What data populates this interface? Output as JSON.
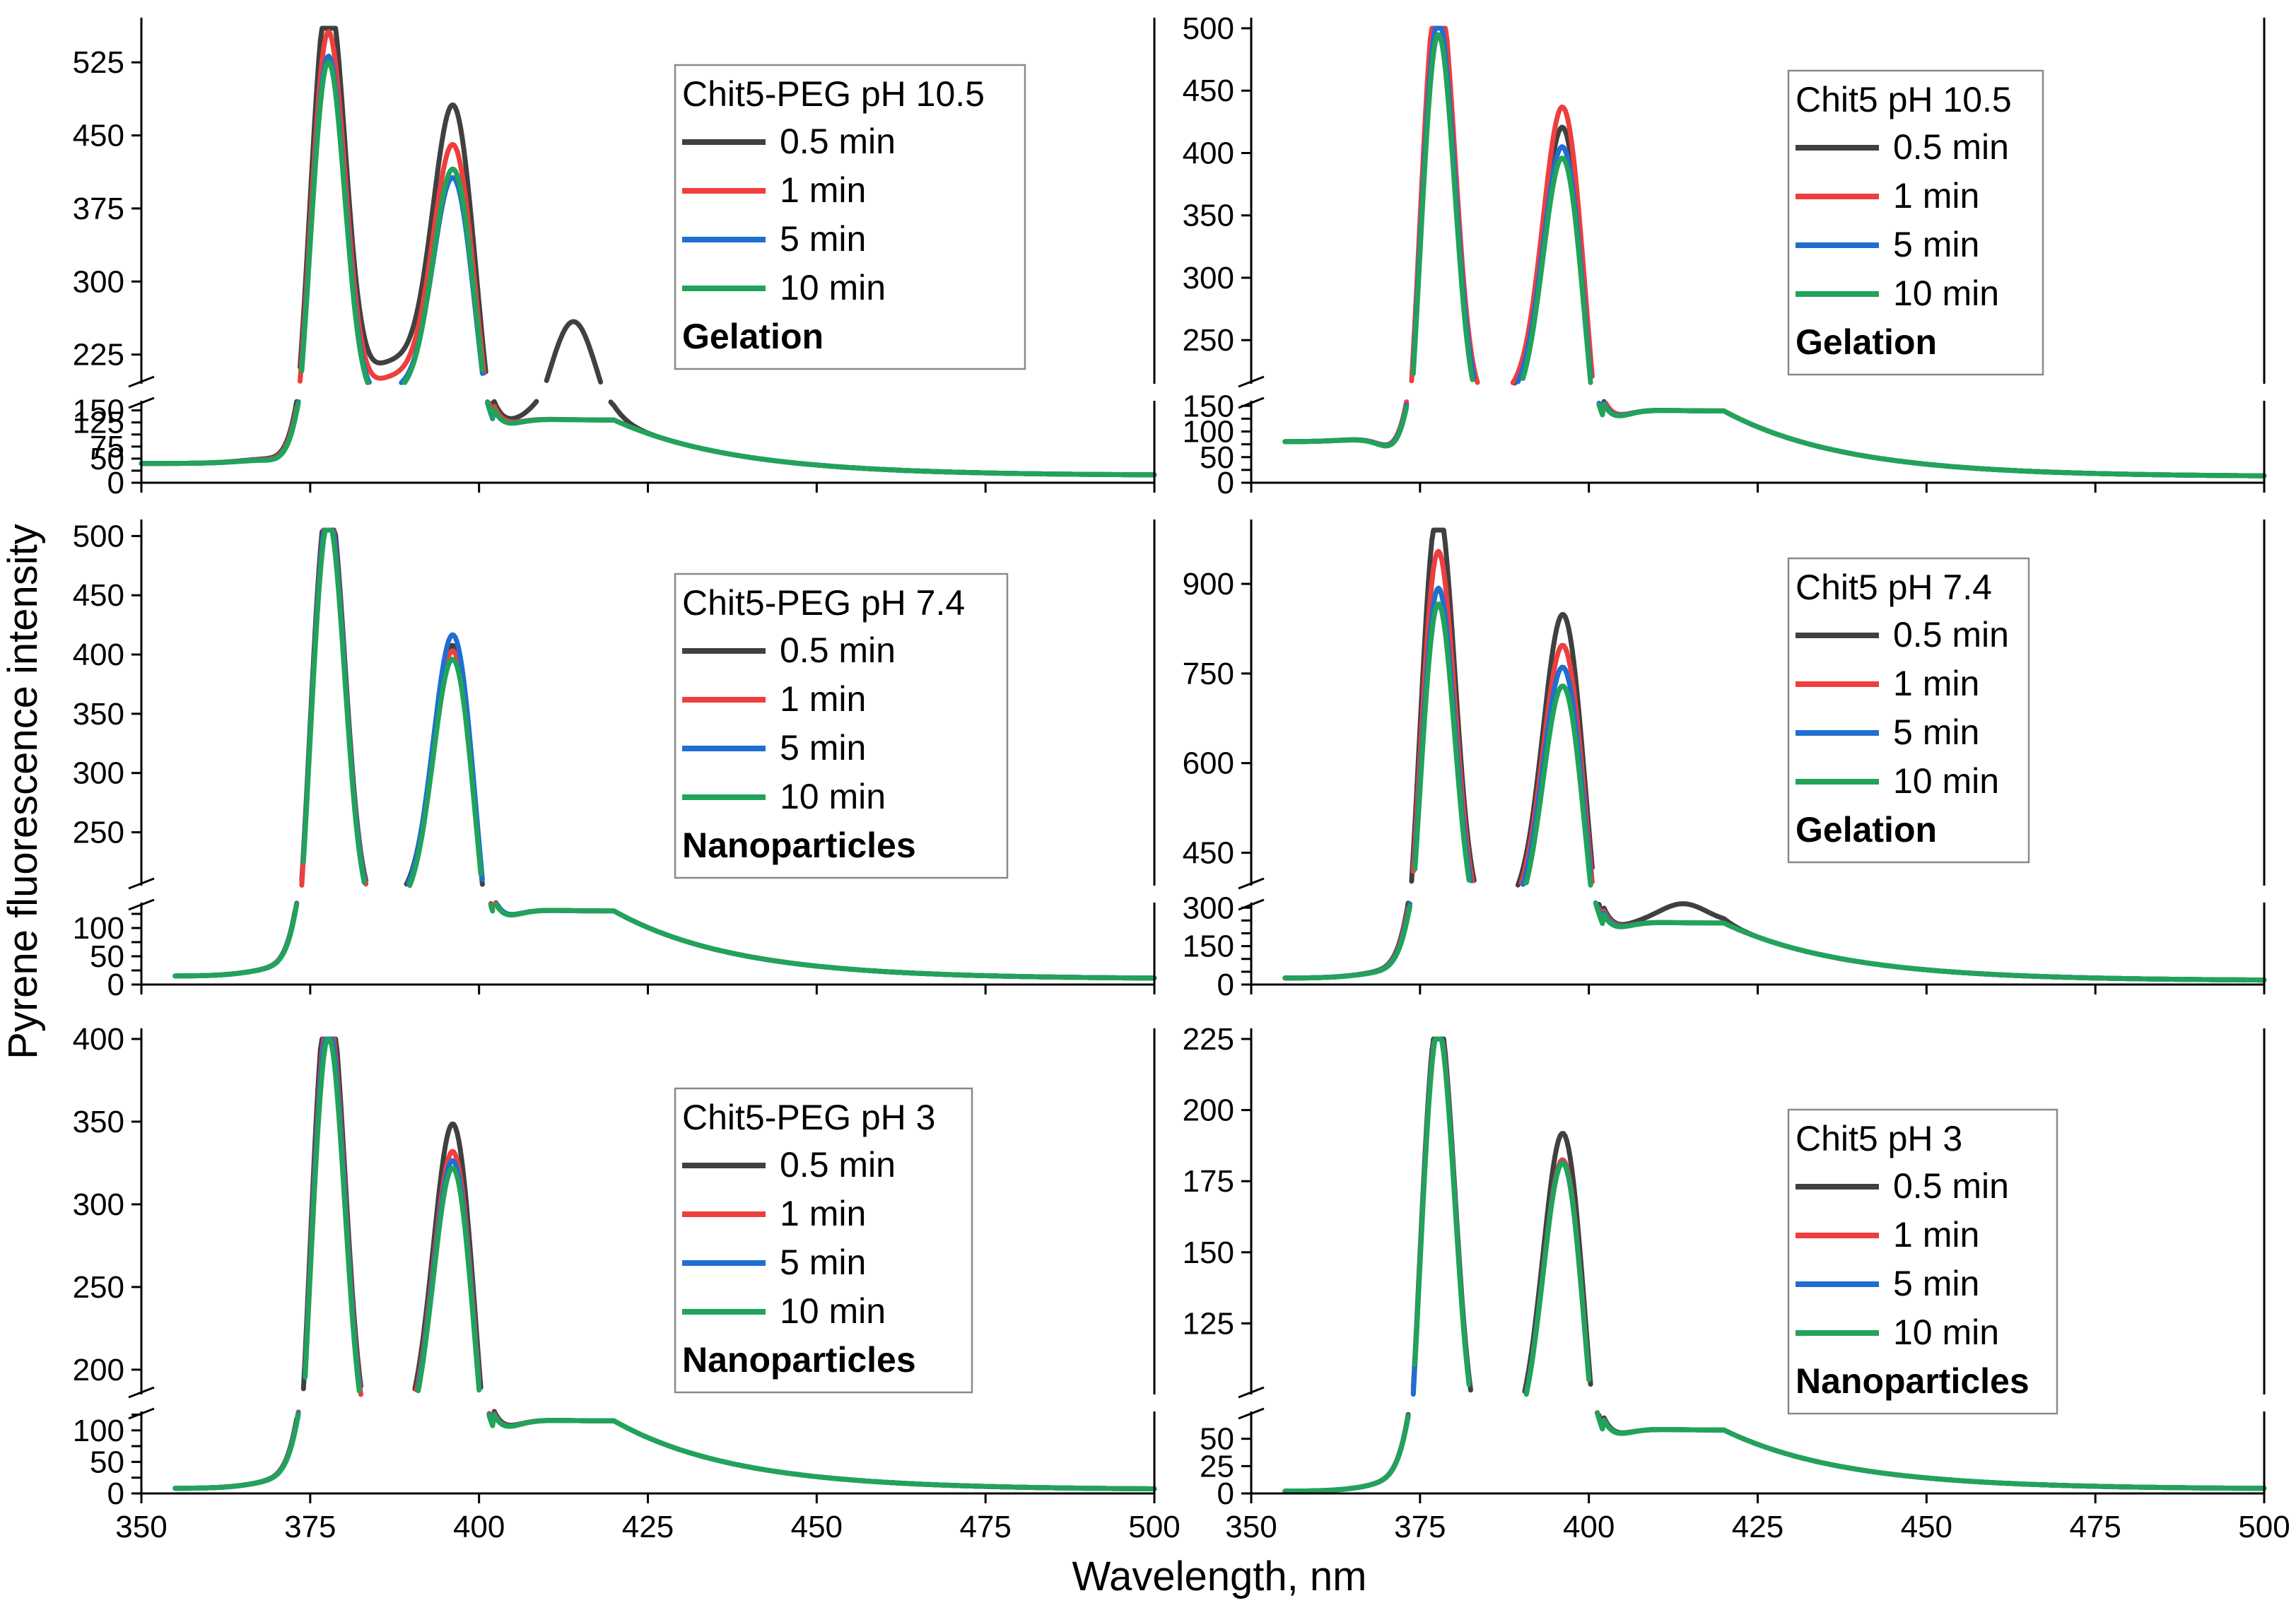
{
  "figure": {
    "ylabel": "Pyrene fluorescence intensity",
    "xlabel": "Wavelength, nm"
  },
  "colors": {
    "0.5 min": "#404040",
    "1 min": "#ef3e3e",
    "5 min": "#1f6fd1",
    "10 min": "#21a35a"
  },
  "chart_data": [
    {
      "id": "chit5-peg-105",
      "type": "line",
      "legend_title": "Chit5-PEG pH 10.5",
      "state": "Gelation",
      "xlim": [
        350,
        500
      ],
      "ylim_upper": [
        195,
        560
      ],
      "yticks_upper": [
        225,
        300,
        375,
        450,
        525
      ],
      "ylim_lower": [
        0,
        170
      ],
      "yticks_lower": [
        0,
        25,
        50,
        75,
        100,
        125,
        150
      ],
      "yticklabels_lower": [
        "0",
        "",
        "50",
        "75",
        "",
        "125",
        "150"
      ],
      "peaks": [
        {
          "name": "0.5 min",
          "p1": 550,
          "v1": 275,
          "p2": 430,
          "s3": 245
        },
        {
          "name": "1 min",
          "p1": 512,
          "v1": 255,
          "p2": 393,
          "s3": 0
        },
        {
          "name": "5 min",
          "p1": 490,
          "v1": 238,
          "p2": 362,
          "s3": 0
        },
        {
          "name": "10 min",
          "p1": 485,
          "v1": 232,
          "p2": 372,
          "s3": 0
        }
      ],
      "baseline": {
        "start": 40,
        "tail": 15,
        "shoulder": 130
      }
    },
    {
      "id": "chit5-105",
      "type": "line",
      "legend_title": "Chit5 pH 10.5",
      "state": "Gelation",
      "xlim": [
        350,
        500
      ],
      "ylim_upper": [
        215,
        500
      ],
      "yticks_upper": [
        250,
        300,
        350,
        400,
        450,
        500
      ],
      "ylim_lower": [
        0,
        160
      ],
      "yticks_lower": [
        0,
        25,
        50,
        75,
        100,
        125,
        150
      ],
      "yticklabels_lower": [
        "0",
        "",
        "50",
        "",
        "100",
        "",
        "150"
      ],
      "peaks": [
        {
          "name": "0.5 min",
          "p1": 475,
          "v1": 258,
          "p2": 372,
          "s3": 0
        },
        {
          "name": "1 min",
          "p1": 490,
          "v1": 260,
          "p2": 388,
          "s3": 0
        },
        {
          "name": "5 min",
          "p1": 462,
          "v1": 254,
          "p2": 357,
          "s3": 0
        },
        {
          "name": "10 min",
          "p1": 452,
          "v1": 243,
          "p2": 350,
          "s3": 0
        }
      ],
      "baseline": {
        "start": 80,
        "tail": 12,
        "shoulder": 140
      }
    },
    {
      "id": "chit5-peg-74",
      "type": "line",
      "legend_title": "Chit5-PEG pH 7.4",
      "state": "Nanoparticles",
      "xlim": [
        350,
        500
      ],
      "ylim_upper": [
        205,
        505
      ],
      "yticks_upper": [
        250,
        300,
        350,
        400,
        450,
        500
      ],
      "ylim_lower": [
        0,
        145
      ],
      "yticks_lower": [
        0,
        25,
        50,
        75,
        100,
        125
      ],
      "yticklabels_lower": [
        "0",
        "",
        "50",
        "",
        "100",
        ""
      ],
      "peaks": [
        {
          "name": "0.5 min",
          "p1": 490,
          "v1": 243,
          "p2": 362,
          "s3": 0
        },
        {
          "name": "1 min",
          "p1": 480,
          "v1": 240,
          "p2": 358,
          "s3": 0
        },
        {
          "name": "5 min",
          "p1": 478,
          "v1": 238,
          "p2": 372,
          "s3": 0
        },
        {
          "name": "10 min",
          "p1": 472,
          "v1": 234,
          "p2": 352,
          "s3": 0
        }
      ],
      "baseline": {
        "start": 15,
        "tail": 10,
        "shoulder": 130
      }
    },
    {
      "id": "chit5-74",
      "type": "line",
      "legend_title": "Chit5 pH 7.4",
      "state": "Gelation",
      "xlim": [
        350,
        500
      ],
      "ylim_upper": [
        395,
        990
      ],
      "yticks_upper": [
        450,
        600,
        750,
        900
      ],
      "ylim_lower": [
        0,
        320
      ],
      "yticks_lower": [
        0,
        50,
        100,
        150,
        200,
        250,
        300
      ],
      "yticklabels_lower": [
        "0",
        "",
        "",
        "150",
        "",
        "",
        "300"
      ],
      "peaks": [
        {
          "name": "0.5 min",
          "p1": 950,
          "v1": 450,
          "p2": 765,
          "s3": 290
        },
        {
          "name": "1 min",
          "p1": 878,
          "v1": 440,
          "p2": 715,
          "s3": 0
        },
        {
          "name": "5 min",
          "p1": 818,
          "v1": 430,
          "p2": 680,
          "s3": 0
        },
        {
          "name": "10 min",
          "p1": 795,
          "v1": 410,
          "p2": 652,
          "s3": 0
        }
      ],
      "baseline": {
        "start": 25,
        "tail": 15,
        "shoulder": 240
      }
    },
    {
      "id": "chit5-peg-3",
      "type": "line",
      "legend_title": "Chit5-PEG pH 3",
      "state": "Nanoparticles",
      "xlim": [
        350,
        500
      ],
      "ylim_upper": [
        185,
        400
      ],
      "yticks_upper": [
        200,
        250,
        300,
        350,
        400
      ],
      "ylim_lower": [
        0,
        130
      ],
      "yticks_lower": [
        0,
        25,
        50,
        75,
        100,
        125
      ],
      "yticklabels_lower": [
        "0",
        "",
        "50",
        "",
        "100",
        ""
      ],
      "peaks": [
        {
          "name": "0.5 min",
          "p1": 395,
          "v1": 200,
          "p2": 311,
          "s3": 0
        },
        {
          "name": "1 min",
          "p1": 380,
          "v1": 196,
          "p2": 295,
          "s3": 0
        },
        {
          "name": "5 min",
          "p1": 375,
          "v1": 193,
          "p2": 290,
          "s3": 0
        },
        {
          "name": "10 min",
          "p1": 368,
          "v1": 190,
          "p2": 286,
          "s3": 0
        }
      ],
      "baseline": {
        "start": 8,
        "tail": 6,
        "shoulder": 115
      }
    },
    {
      "id": "chit5-3",
      "type": "line",
      "legend_title": "Chit5 pH 3",
      "state": "Nanoparticles",
      "xlim": [
        350,
        500
      ],
      "ylim_upper": [
        100,
        225
      ],
      "yticks_upper": [
        125,
        150,
        175,
        200,
        225
      ],
      "ylim_lower": [
        0,
        75
      ],
      "yticks_lower": [
        0,
        25,
        50
      ],
      "yticklabels_lower": [
        "0",
        "25",
        "50"
      ],
      "peaks": [
        {
          "name": "0.5 min",
          "p1": 215,
          "v1": 106,
          "p2": 172,
          "s3": 0
        },
        {
          "name": "1 min",
          "p1": 212,
          "v1": 104,
          "p2": 163,
          "s3": 0
        },
        {
          "name": "5 min",
          "p1": 211,
          "v1": 104,
          "p2": 162,
          "s3": 0
        },
        {
          "name": "10 min",
          "p1": 210,
          "v1": 103,
          "p2": 162,
          "s3": 0
        }
      ],
      "baseline": {
        "start": 2,
        "tail": 4,
        "shoulder": 58
      }
    }
  ],
  "xticks": [
    350,
    375,
    400,
    425,
    450,
    475,
    500
  ]
}
